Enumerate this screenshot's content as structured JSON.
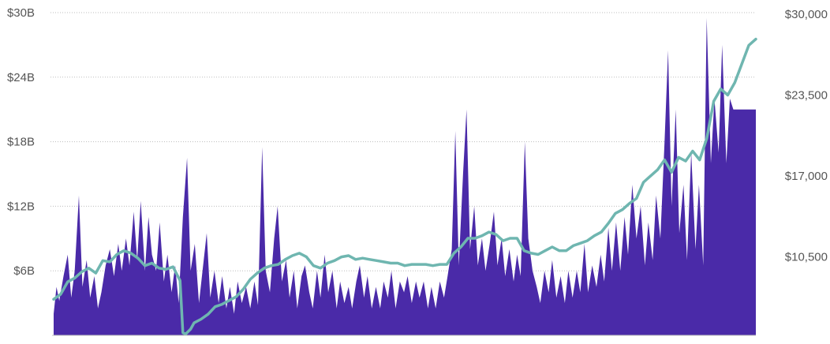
{
  "chart_data": {
    "type": "area",
    "title": "",
    "grid": true,
    "left_axis": {
      "ticks": [
        6,
        12,
        18,
        24,
        30
      ],
      "tick_labels": [
        "$6B",
        "$12B",
        "$18B",
        "$24B",
        "$30B"
      ],
      "range": [
        0,
        30
      ]
    },
    "right_axis": {
      "ticks": [
        10500,
        17000,
        23500,
        30000
      ],
      "tick_labels": [
        "$10,500",
        "$17,000",
        "$23,500",
        "$30,000"
      ],
      "range": [
        4200,
        30000
      ]
    },
    "x": {
      "range": [
        0,
        1
      ]
    },
    "series": [
      {
        "kind": "area",
        "axis": "left",
        "color": "#4a2aa8",
        "points": [
          [
            0.0,
            2.0
          ],
          [
            0.004,
            4.5
          ],
          [
            0.008,
            3.2
          ],
          [
            0.014,
            5.5
          ],
          [
            0.02,
            7.5
          ],
          [
            0.025,
            3.5
          ],
          [
            0.03,
            6.0
          ],
          [
            0.036,
            13.0
          ],
          [
            0.041,
            4.5
          ],
          [
            0.047,
            7.0
          ],
          [
            0.052,
            3.5
          ],
          [
            0.058,
            5.5
          ],
          [
            0.063,
            2.5
          ],
          [
            0.068,
            4.0
          ],
          [
            0.074,
            6.5
          ],
          [
            0.08,
            8.0
          ],
          [
            0.086,
            5.5
          ],
          [
            0.092,
            8.5
          ],
          [
            0.097,
            6.0
          ],
          [
            0.103,
            9.0
          ],
          [
            0.108,
            6.5
          ],
          [
            0.114,
            11.5
          ],
          [
            0.119,
            7.0
          ],
          [
            0.124,
            12.5
          ],
          [
            0.13,
            6.0
          ],
          [
            0.135,
            11.0
          ],
          [
            0.14,
            7.5
          ],
          [
            0.146,
            6.0
          ],
          [
            0.151,
            10.5
          ],
          [
            0.157,
            5.0
          ],
          [
            0.162,
            7.5
          ],
          [
            0.168,
            4.0
          ],
          [
            0.173,
            6.5
          ],
          [
            0.178,
            3.0
          ],
          [
            0.184,
            11.0
          ],
          [
            0.19,
            16.5
          ],
          [
            0.195,
            6.0
          ],
          [
            0.201,
            8.5
          ],
          [
            0.207,
            3.0
          ],
          [
            0.212,
            6.0
          ],
          [
            0.218,
            9.5
          ],
          [
            0.223,
            3.5
          ],
          [
            0.229,
            6.0
          ],
          [
            0.235,
            3.0
          ],
          [
            0.24,
            5.5
          ],
          [
            0.246,
            2.5
          ],
          [
            0.251,
            4.5
          ],
          [
            0.257,
            2.0
          ],
          [
            0.262,
            5.0
          ],
          [
            0.268,
            3.0
          ],
          [
            0.274,
            4.5
          ],
          [
            0.28,
            2.5
          ],
          [
            0.286,
            5.0
          ],
          [
            0.291,
            2.8
          ],
          [
            0.297,
            17.5
          ],
          [
            0.302,
            6.0
          ],
          [
            0.308,
            4.0
          ],
          [
            0.314,
            9.0
          ],
          [
            0.319,
            12.0
          ],
          [
            0.325,
            5.0
          ],
          [
            0.331,
            7.0
          ],
          [
            0.336,
            3.5
          ],
          [
            0.342,
            6.0
          ],
          [
            0.347,
            2.5
          ],
          [
            0.353,
            5.5
          ],
          [
            0.358,
            6.5
          ],
          [
            0.364,
            4.0
          ],
          [
            0.369,
            2.5
          ],
          [
            0.375,
            6.0
          ],
          [
            0.38,
            3.5
          ],
          [
            0.386,
            7.5
          ],
          [
            0.391,
            4.0
          ],
          [
            0.397,
            6.0
          ],
          [
            0.403,
            2.5
          ],
          [
            0.408,
            5.0
          ],
          [
            0.414,
            3.0
          ],
          [
            0.42,
            4.5
          ],
          [
            0.425,
            2.5
          ],
          [
            0.431,
            5.0
          ],
          [
            0.436,
            6.5
          ],
          [
            0.442,
            3.5
          ],
          [
            0.447,
            5.5
          ],
          [
            0.453,
            2.5
          ],
          [
            0.459,
            4.5
          ],
          [
            0.465,
            2.5
          ],
          [
            0.47,
            5.0
          ],
          [
            0.476,
            3.5
          ],
          [
            0.481,
            6.0
          ],
          [
            0.487,
            2.5
          ],
          [
            0.493,
            5.0
          ],
          [
            0.499,
            4.0
          ],
          [
            0.504,
            5.5
          ],
          [
            0.51,
            3.0
          ],
          [
            0.516,
            5.0
          ],
          [
            0.521,
            3.5
          ],
          [
            0.527,
            5.0
          ],
          [
            0.533,
            2.5
          ],
          [
            0.538,
            4.5
          ],
          [
            0.544,
            2.5
          ],
          [
            0.55,
            5.0
          ],
          [
            0.556,
            3.5
          ],
          [
            0.561,
            5.5
          ],
          [
            0.567,
            8.0
          ],
          [
            0.572,
            19.0
          ],
          [
            0.577,
            6.5
          ],
          [
            0.583,
            15.0
          ],
          [
            0.588,
            21.0
          ],
          [
            0.593,
            8.0
          ],
          [
            0.599,
            12.0
          ],
          [
            0.604,
            6.5
          ],
          [
            0.61,
            9.0
          ],
          [
            0.615,
            6.0
          ],
          [
            0.621,
            8.5
          ],
          [
            0.627,
            11.5
          ],
          [
            0.632,
            6.5
          ],
          [
            0.638,
            9.0
          ],
          [
            0.643,
            5.5
          ],
          [
            0.649,
            8.0
          ],
          [
            0.655,
            5.0
          ],
          [
            0.66,
            7.5
          ],
          [
            0.665,
            5.5
          ],
          [
            0.671,
            18.0
          ],
          [
            0.676,
            9.0
          ],
          [
            0.682,
            6.0
          ],
          [
            0.688,
            4.5
          ],
          [
            0.693,
            3.0
          ],
          [
            0.699,
            6.0
          ],
          [
            0.705,
            4.0
          ],
          [
            0.71,
            7.0
          ],
          [
            0.716,
            3.5
          ],
          [
            0.722,
            5.5
          ],
          [
            0.728,
            3.0
          ],
          [
            0.733,
            6.0
          ],
          [
            0.739,
            3.5
          ],
          [
            0.745,
            6.0
          ],
          [
            0.75,
            4.0
          ],
          [
            0.756,
            8.5
          ],
          [
            0.761,
            4.0
          ],
          [
            0.767,
            6.5
          ],
          [
            0.773,
            4.5
          ],
          [
            0.779,
            7.5
          ],
          [
            0.784,
            5.0
          ],
          [
            0.79,
            10.0
          ],
          [
            0.795,
            6.0
          ],
          [
            0.801,
            10.5
          ],
          [
            0.807,
            6.0
          ],
          [
            0.813,
            11.0
          ],
          [
            0.818,
            7.5
          ],
          [
            0.824,
            14.0
          ],
          [
            0.83,
            9.0
          ],
          [
            0.836,
            12.0
          ],
          [
            0.842,
            6.5
          ],
          [
            0.847,
            10.5
          ],
          [
            0.853,
            7.0
          ],
          [
            0.858,
            13.0
          ],
          [
            0.864,
            9.0
          ],
          [
            0.87,
            18.0
          ],
          [
            0.875,
            26.5
          ],
          [
            0.88,
            12.0
          ],
          [
            0.886,
            21.0
          ],
          [
            0.891,
            9.5
          ],
          [
            0.897,
            14.0
          ],
          [
            0.902,
            7.0
          ],
          [
            0.908,
            17.0
          ],
          [
            0.914,
            8.0
          ],
          [
            0.919,
            14.0
          ],
          [
            0.925,
            6.5
          ],
          [
            0.93,
            29.5
          ],
          [
            0.936,
            16.0
          ],
          [
            0.941,
            22.0
          ],
          [
            0.947,
            17.0
          ],
          [
            0.952,
            27.0
          ],
          [
            0.958,
            16.0
          ],
          [
            0.963,
            22.0
          ],
          [
            0.968,
            21.0
          ],
          [
            1.0,
            21.0
          ]
        ]
      },
      {
        "kind": "line",
        "axis": "right",
        "color": "#6fb6b0",
        "points": [
          [
            0.0,
            7100
          ],
          [
            0.01,
            7500
          ],
          [
            0.02,
            8500
          ],
          [
            0.03,
            8800
          ],
          [
            0.04,
            9300
          ],
          [
            0.05,
            9600
          ],
          [
            0.06,
            9200
          ],
          [
            0.07,
            10200
          ],
          [
            0.08,
            10100
          ],
          [
            0.09,
            10700
          ],
          [
            0.1,
            11000
          ],
          [
            0.11,
            10800
          ],
          [
            0.12,
            10400
          ],
          [
            0.13,
            9800
          ],
          [
            0.14,
            10000
          ],
          [
            0.15,
            9600
          ],
          [
            0.16,
            9500
          ],
          [
            0.17,
            9700
          ],
          [
            0.18,
            8600
          ],
          [
            0.184,
            4400
          ],
          [
            0.188,
            4300
          ],
          [
            0.195,
            4700
          ],
          [
            0.2,
            5200
          ],
          [
            0.21,
            5500
          ],
          [
            0.22,
            5900
          ],
          [
            0.23,
            6500
          ],
          [
            0.24,
            6700
          ],
          [
            0.25,
            7000
          ],
          [
            0.26,
            7300
          ],
          [
            0.27,
            7900
          ],
          [
            0.28,
            8700
          ],
          [
            0.29,
            9200
          ],
          [
            0.3,
            9600
          ],
          [
            0.31,
            9800
          ],
          [
            0.32,
            9900
          ],
          [
            0.33,
            10300
          ],
          [
            0.34,
            10600
          ],
          [
            0.35,
            10800
          ],
          [
            0.36,
            10500
          ],
          [
            0.37,
            9800
          ],
          [
            0.38,
            9600
          ],
          [
            0.39,
            10000
          ],
          [
            0.4,
            10200
          ],
          [
            0.41,
            10500
          ],
          [
            0.42,
            10600
          ],
          [
            0.43,
            10300
          ],
          [
            0.44,
            10400
          ],
          [
            0.45,
            10300
          ],
          [
            0.46,
            10200
          ],
          [
            0.47,
            10100
          ],
          [
            0.48,
            10000
          ],
          [
            0.49,
            10000
          ],
          [
            0.5,
            9800
          ],
          [
            0.51,
            9900
          ],
          [
            0.52,
            9900
          ],
          [
            0.53,
            9900
          ],
          [
            0.54,
            9800
          ],
          [
            0.55,
            9900
          ],
          [
            0.56,
            9900
          ],
          [
            0.57,
            10800
          ],
          [
            0.58,
            11300
          ],
          [
            0.59,
            12000
          ],
          [
            0.6,
            12000
          ],
          [
            0.61,
            12200
          ],
          [
            0.62,
            12500
          ],
          [
            0.63,
            12300
          ],
          [
            0.64,
            11800
          ],
          [
            0.65,
            12000
          ],
          [
            0.66,
            12000
          ],
          [
            0.67,
            11000
          ],
          [
            0.68,
            10800
          ],
          [
            0.69,
            10700
          ],
          [
            0.7,
            11000
          ],
          [
            0.71,
            11300
          ],
          [
            0.72,
            11000
          ],
          [
            0.73,
            11000
          ],
          [
            0.74,
            11400
          ],
          [
            0.75,
            11600
          ],
          [
            0.76,
            11800
          ],
          [
            0.77,
            12200
          ],
          [
            0.78,
            12500
          ],
          [
            0.79,
            13200
          ],
          [
            0.8,
            14000
          ],
          [
            0.81,
            14300
          ],
          [
            0.82,
            14800
          ],
          [
            0.83,
            15200
          ],
          [
            0.84,
            16500
          ],
          [
            0.85,
            17000
          ],
          [
            0.86,
            17500
          ],
          [
            0.87,
            18300
          ],
          [
            0.88,
            17300
          ],
          [
            0.89,
            18500
          ],
          [
            0.9,
            18200
          ],
          [
            0.91,
            19000
          ],
          [
            0.92,
            18300
          ],
          [
            0.93,
            20000
          ],
          [
            0.94,
            23000
          ],
          [
            0.95,
            24000
          ],
          [
            0.96,
            23500
          ],
          [
            0.97,
            24500
          ],
          [
            0.98,
            26000
          ],
          [
            0.99,
            27500
          ],
          [
            1.0,
            28000
          ]
        ]
      }
    ]
  }
}
